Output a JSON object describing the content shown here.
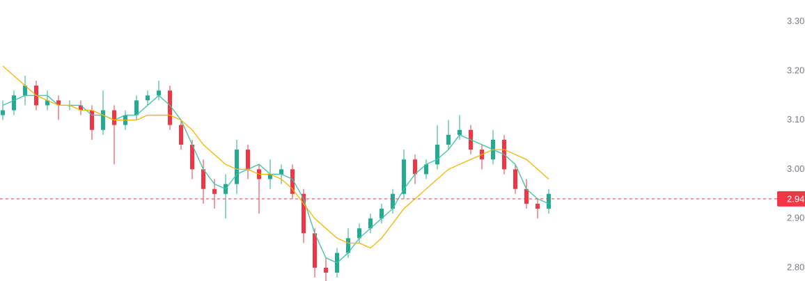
{
  "chart_data": {
    "type": "candlestick",
    "open": [
      3.11,
      3.12,
      3.15,
      3.17,
      3.13,
      3.14,
      3.13,
      3.13,
      3.12,
      3.08,
      3.12,
      3.09,
      3.11,
      3.14,
      3.15,
      3.16,
      3.09,
      3.05,
      3.0,
      2.96,
      2.95,
      2.97,
      3.04,
      3.0,
      2.98,
      2.99,
      3.0,
      2.95,
      2.87,
      2.8,
      2.79,
      2.83,
      2.86,
      2.88,
      2.9,
      2.92,
      2.95,
      3.02,
      2.99,
      3.01,
      3.05,
      3.07,
      3.08,
      3.04,
      3.02,
      3.06,
      3.0,
      2.96,
      2.93,
      2.92
    ],
    "high": [
      3.14,
      3.16,
      3.19,
      3.18,
      3.16,
      3.15,
      3.14,
      3.14,
      3.13,
      3.16,
      3.13,
      3.12,
      3.15,
      3.16,
      3.18,
      3.17,
      3.1,
      3.06,
      3.02,
      2.98,
      2.99,
      3.06,
      3.05,
      3.01,
      3.02,
      3.01,
      3.01,
      2.96,
      2.88,
      2.82,
      2.84,
      2.88,
      2.89,
      2.91,
      2.93,
      2.96,
      3.04,
      3.03,
      3.02,
      3.09,
      3.1,
      3.11,
      3.09,
      3.05,
      3.08,
      3.07,
      3.01,
      2.98,
      2.94,
      2.96
    ],
    "low": [
      3.1,
      3.11,
      3.13,
      3.12,
      3.12,
      3.1,
      3.12,
      3.11,
      3.06,
      3.07,
      3.01,
      3.08,
      3.1,
      3.13,
      3.14,
      3.08,
      3.04,
      2.98,
      2.93,
      2.92,
      2.9,
      2.95,
      2.98,
      2.91,
      2.96,
      2.97,
      2.94,
      2.85,
      2.78,
      2.77,
      2.78,
      2.82,
      2.85,
      2.87,
      2.89,
      2.91,
      2.94,
      2.97,
      2.98,
      3.0,
      3.04,
      3.06,
      3.03,
      3.0,
      3.01,
      2.99,
      2.95,
      2.92,
      2.9,
      2.91
    ],
    "close": [
      3.12,
      3.15,
      3.17,
      3.13,
      3.14,
      3.13,
      3.13,
      3.12,
      3.08,
      3.12,
      3.09,
      3.11,
      3.14,
      3.15,
      3.16,
      3.09,
      3.05,
      3.0,
      2.96,
      2.95,
      2.97,
      3.04,
      3.0,
      2.98,
      2.99,
      3.0,
      2.95,
      2.87,
      2.8,
      2.79,
      2.83,
      2.86,
      2.88,
      2.9,
      2.92,
      2.95,
      3.02,
      2.99,
      3.01,
      3.05,
      3.07,
      3.08,
      3.04,
      3.02,
      3.06,
      3.0,
      2.96,
      2.93,
      2.92,
      2.95
    ],
    "up_color": "#22ab94",
    "down_color": "#f23645",
    "series": [
      {
        "color": "#3cc2a4",
        "values": [
          3.13,
          3.14,
          3.15,
          3.15,
          3.15,
          3.13,
          3.13,
          3.13,
          3.11,
          3.11,
          3.1,
          3.11,
          3.11,
          3.13,
          3.15,
          3.13,
          3.1,
          3.05,
          3.0,
          2.97,
          2.96,
          2.99,
          3.0,
          3.01,
          2.99,
          2.99,
          2.98,
          2.94,
          2.87,
          2.82,
          2.81,
          2.83,
          2.86,
          2.88,
          2.9,
          2.92,
          2.96,
          2.99,
          3.01,
          3.02,
          3.04,
          3.07,
          3.06,
          3.05,
          3.04,
          3.03,
          3.01,
          2.96,
          2.94,
          2.93
        ]
      },
      {
        "color": "#f5b400",
        "values": [
          3.21,
          3.19,
          3.17,
          3.15,
          3.14,
          3.13,
          3.13,
          3.12,
          3.12,
          3.11,
          3.1,
          3.1,
          3.1,
          3.11,
          3.11,
          3.11,
          3.1,
          3.08,
          3.05,
          3.03,
          3.01,
          3.0,
          3.0,
          2.99,
          2.99,
          2.98,
          2.96,
          2.93,
          2.9,
          2.88,
          2.86,
          2.85,
          2.85,
          2.84,
          2.86,
          2.89,
          2.92,
          2.94,
          2.96,
          2.98,
          3.0,
          3.01,
          3.02,
          3.03,
          3.04,
          3.04,
          3.03,
          3.02,
          3.0,
          2.98
        ]
      }
    ],
    "current_price": 2.94,
    "ylim": [
      2.773,
      3.344
    ],
    "yticks": [
      {
        "value": 2.8,
        "label": "2.80"
      },
      {
        "value": 2.9,
        "label": "2.90"
      },
      {
        "value": 3.0,
        "label": "3.00"
      },
      {
        "value": 3.1,
        "label": "3.10"
      },
      {
        "value": 3.2,
        "label": "3.20"
      },
      {
        "value": 3.3,
        "label": "3.30"
      }
    ]
  }
}
